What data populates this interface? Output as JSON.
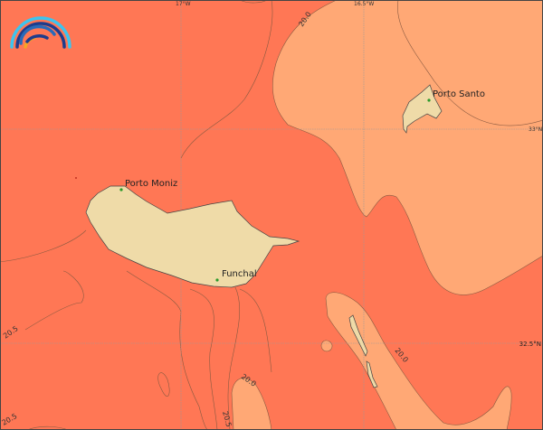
{
  "colors": {
    "sea_warm": "#FF7755",
    "sea_cool": "#FFA875",
    "land": "#EFDBA8",
    "contour": "#8a5a40",
    "grid": "#999999",
    "city_dot": "#2a9a2a"
  },
  "grid": {
    "lon_labels": [
      "17°W",
      "16.5°W"
    ],
    "lat_labels": [
      "33°N",
      "32.5°N"
    ]
  },
  "contour_labels": [
    "20.0",
    "20.5",
    "20.5",
    "20.0",
    "20.5",
    "20.0"
  ],
  "cities": [
    {
      "name": "Porto Moniz"
    },
    {
      "name": "Funchal"
    },
    {
      "name": "Porto Santo"
    }
  ],
  "logo": {
    "icon": "rainbow-arc-logo"
  }
}
